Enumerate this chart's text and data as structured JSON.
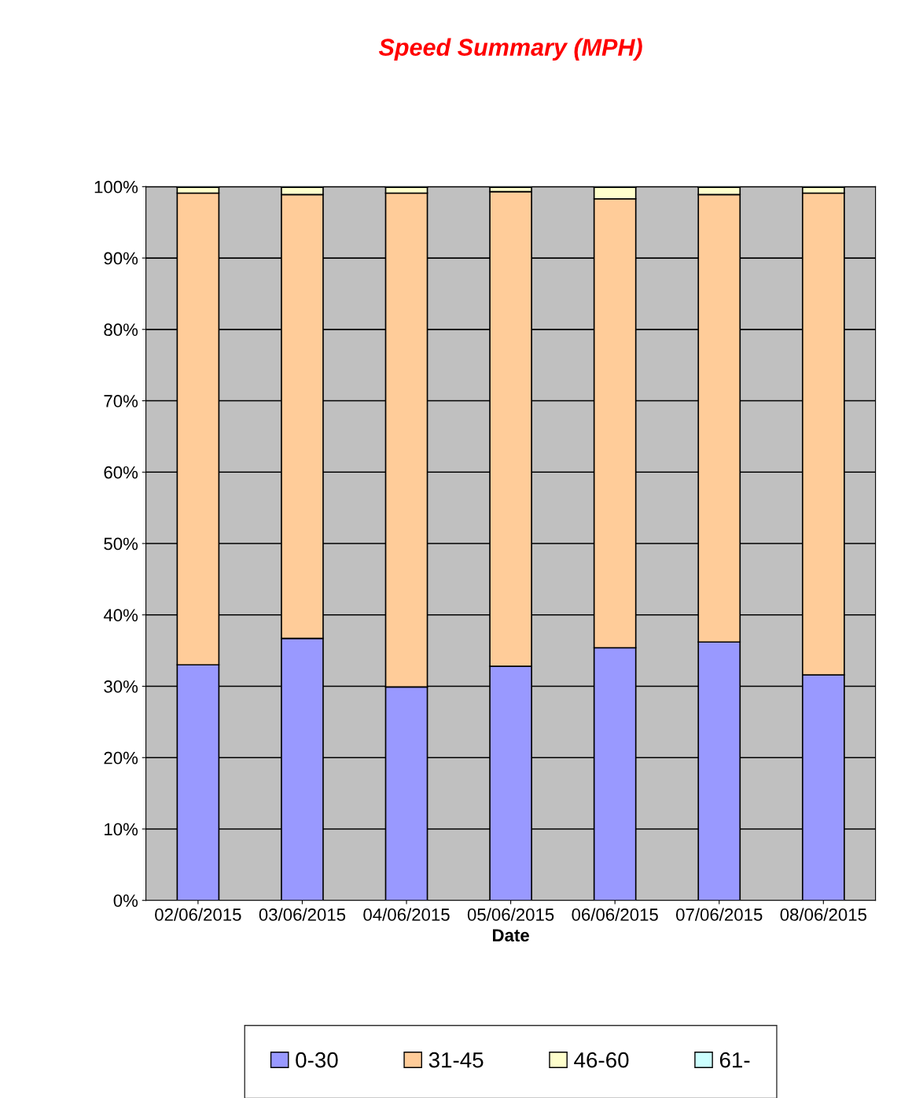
{
  "chart_data": {
    "type": "bar",
    "title": "Speed Summary (MPH)",
    "xlabel": "Date",
    "categories": [
      "02/06/2015",
      "03/06/2015",
      "04/06/2015",
      "05/06/2015",
      "06/06/2015",
      "07/06/2015",
      "08/06/2015"
    ],
    "stacked": true,
    "series": [
      {
        "name": "0-30",
        "color": "#9999ff",
        "values": [
          33.0,
          36.7,
          29.9,
          32.8,
          35.4,
          36.2,
          31.6
        ]
      },
      {
        "name": "31-45",
        "color": "#ffcc99",
        "values": [
          66.1,
          62.2,
          69.2,
          66.5,
          62.9,
          62.7,
          67.5
        ]
      },
      {
        "name": "46-60",
        "color": "#ffffcc",
        "values": [
          0.8,
          1.0,
          0.8,
          0.6,
          1.6,
          1.0,
          0.8
        ]
      },
      {
        "name": "61-",
        "color": "#ccffff",
        "values": [
          0.1,
          0.1,
          0.1,
          0.1,
          0.1,
          0.1,
          0.1
        ]
      }
    ],
    "ylim": [
      0,
      100
    ],
    "yticks": [
      {
        "value": 0,
        "label": "0%"
      },
      {
        "value": 10,
        "label": "10%"
      },
      {
        "value": 20,
        "label": "20%"
      },
      {
        "value": 30,
        "label": "30%"
      },
      {
        "value": 40,
        "label": "40%"
      },
      {
        "value": 50,
        "label": "50%"
      },
      {
        "value": 60,
        "label": "60%"
      },
      {
        "value": 70,
        "label": "70%"
      },
      {
        "value": 80,
        "label": "80%"
      },
      {
        "value": 90,
        "label": "90%"
      },
      {
        "value": 100,
        "label": "100%"
      }
    ],
    "grid": "y",
    "legend": "bottom"
  }
}
